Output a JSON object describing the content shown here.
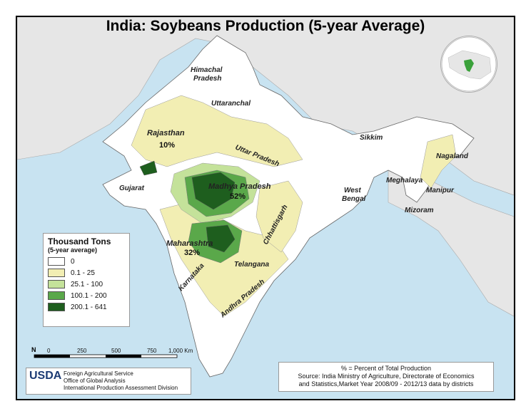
{
  "title": "India: Soybeans Production (5-year Average)",
  "regions": {
    "himachal": "Himachal",
    "himachal2": "Pradesh",
    "uttaranchal": "Uttaranchal",
    "rajasthan": "Rajasthan",
    "rajasthan_pct": "10%",
    "uttar_pradesh": "Uttar Pradesh",
    "sikkim": "Sikkim",
    "nagaland": "Nagaland",
    "meghalaya": "Meghalaya",
    "manipur": "Manipur",
    "mizoram": "Mizoram",
    "gujarat": "Gujarat",
    "madhya_pradesh": "Madhya Pradesh",
    "madhya_pradesh_pct": "52%",
    "west_bengal": "West",
    "west_bengal2": "Bengal",
    "chhattisgarh": "Chhattisgarh",
    "maharashtra": "Maharashtra",
    "maharashtra_pct": "32%",
    "telangana": "Telangana",
    "karnataka": "Karnataka",
    "andhra_pradesh": "Andhra Pradesh"
  },
  "legend": {
    "title": "Thousand Tons",
    "subtitle": "(5-year average)",
    "items": [
      {
        "label": "0",
        "color": "#ffffff"
      },
      {
        "label": "0.1 - 25",
        "color": "#f2eeb3"
      },
      {
        "label": "25.1 - 100",
        "color": "#c4e29a"
      },
      {
        "label": "100.1 - 200",
        "color": "#5aa84a"
      },
      {
        "label": "200.1 - 641",
        "color": "#1e5e1e"
      }
    ]
  },
  "scale": {
    "north": "N",
    "ticks": [
      "0",
      "250",
      "500",
      "750",
      "1,000 Km"
    ]
  },
  "credits": {
    "logo": "USDA",
    "lines": [
      "Foreign Agricultural Service",
      "Office of Global Analysis",
      "International Production Assessment Division"
    ]
  },
  "source": {
    "line1": "% = Percent of Total Production",
    "line2": "Source: India Ministry of Agriculture, Directorate of Economics",
    "line3": "and Statistics,Market Year 2008/09 - 2012/13 data by districts"
  },
  "colors": {
    "water": "#c8e3f1",
    "land_other": "#e6e6e6",
    "india_base": "#ffffff",
    "low": "#f2eeb3",
    "mid": "#c4e29a",
    "high": "#5aa84a",
    "top": "#1e5e1e",
    "inset_highlight": "#3aa13a"
  }
}
